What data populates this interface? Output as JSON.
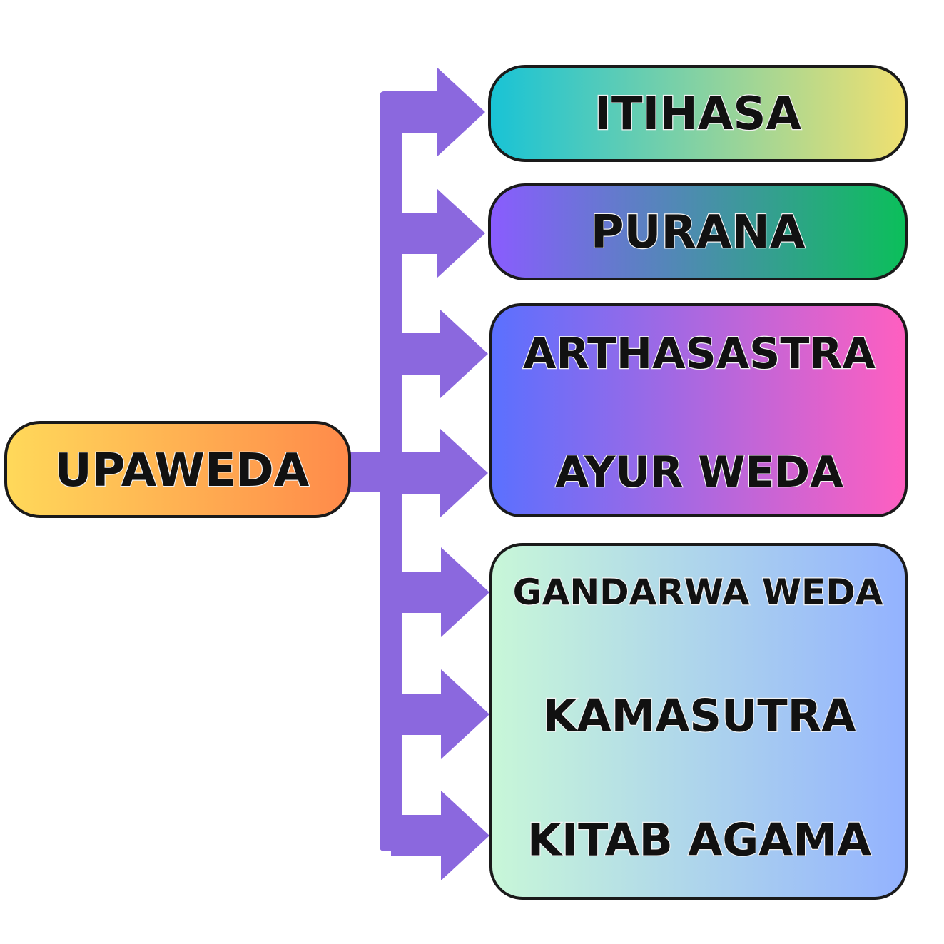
{
  "root": {
    "label": "UPAWEDA",
    "gradient": [
      "#ffd95a",
      "#ff8a4a"
    ]
  },
  "groups": [
    {
      "items": [
        "ITIHASA"
      ],
      "gradient": [
        "#18c3d6",
        "#f0e070"
      ]
    },
    {
      "items": [
        "PURANA"
      ],
      "gradient": [
        "#8a5cff",
        "#0bbf5a"
      ]
    },
    {
      "items": [
        "ARTHASASTRA",
        "AYUR WEDA"
      ],
      "gradient": [
        "#5a70ff",
        "#ff5fc0"
      ]
    },
    {
      "items": [
        "GANDARWA WEDA",
        "KAMASUTRA",
        "KITAB AGAMA"
      ],
      "gradient": [
        "#c8f7d8",
        "#93b2ff"
      ]
    }
  ],
  "colors": {
    "connector": "#8b68de",
    "outline": "#1a1a1a"
  }
}
